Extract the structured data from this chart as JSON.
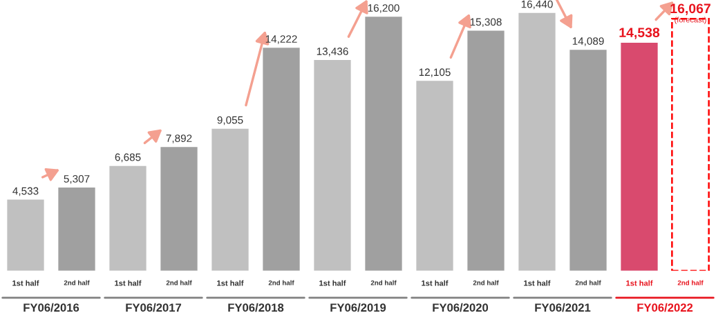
{
  "chart_data": {
    "type": "bar",
    "categories": [
      "1st half",
      "2nd half",
      "1st half",
      "2nd half",
      "1st half",
      "2nd half",
      "1st half",
      "2nd half",
      "1st half",
      "2nd half",
      "1st half",
      "2nd half",
      "1st half",
      "2nd half"
    ],
    "series": [
      {
        "colors": [
          "#c0c0c0",
          "#a0a0a0",
          "#c0c0c0",
          "#a0a0a0",
          "#c0c0c0",
          "#a0a0a0",
          "#c0c0c0",
          "#a0a0a0",
          "#c0c0c0",
          "#a0a0a0",
          "#c0c0c0",
          "#a0a0a0",
          "#d94a6e",
          null
        ],
        "values": [
          4533,
          5307,
          6685,
          7892,
          9055,
          14222,
          13436,
          16200,
          12105,
          15308,
          16440,
          14089,
          14538,
          null
        ],
        "value_labels": [
          "4,533",
          "5,307",
          "6,685",
          "7,892",
          "9,055",
          "14,222",
          "13,436",
          "16,200",
          "12,105",
          "15,308",
          "16,440",
          "14,089",
          "14,538",
          null
        ]
      },
      {
        "color": "#ff0000",
        "line_style": "dashed",
        "values": [
          null,
          null,
          null,
          null,
          null,
          null,
          null,
          null,
          null,
          null,
          null,
          null,
          null,
          16067
        ],
        "value_labels": [
          null,
          null,
          null,
          null,
          null,
          null,
          null,
          null,
          null,
          null,
          null,
          null,
          null,
          "16,067"
        ]
      }
    ],
    "annotations": [
      "FY06/2016",
      "FY06/2017",
      "FY06/2018",
      "FY06/2019",
      "FY06/2020",
      "FY06/2021",
      "FY06/2022",
      "(forecast)"
    ]
  }
}
